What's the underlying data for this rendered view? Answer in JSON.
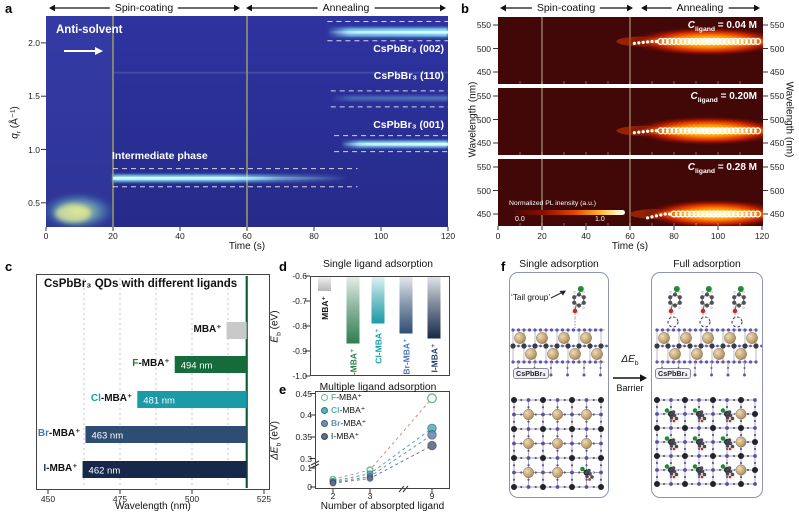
{
  "figure": {
    "panel_labels": {
      "a": "a",
      "b": "b",
      "c": "c",
      "d": "d",
      "e": "e",
      "f": "f"
    }
  },
  "panel_a": {
    "stage_arrows": {
      "spin": "Spin-coating",
      "anneal": "Annealing"
    },
    "anti_solvent": "Anti-solvent",
    "annotations": {
      "peak_002": "CsPbBr₃ (002)",
      "peak_110": "CsPbBr₃ (110)",
      "peak_001": "CsPbBr₃ (001)",
      "intermediate": "Intermediate phase"
    },
    "xlabel": "Time (s)",
    "xticks": [
      "0",
      "20",
      "40",
      "60",
      "80",
      "100",
      "120"
    ],
    "yticks": [
      "2.0",
      "1.5",
      "1.0",
      "0.5"
    ],
    "ylabel": {
      "pre": "q",
      "sub": "r",
      "post": " (Å⁻¹)"
    }
  },
  "panel_b": {
    "stage_arrows": {
      "spin": "Spin-coating",
      "anneal": "Annealing"
    },
    "ylabel_left": "Wavelength (nm)",
    "ylabel_right": "Wavelength (nm)",
    "xlabel": "Time (s)",
    "xticks": [
      "0",
      "20",
      "40",
      "60",
      "80",
      "100",
      "120"
    ],
    "yticks": [
      "550",
      "500",
      "450"
    ],
    "subpanels": [
      {
        "label": {
          "sym": "C",
          "sub": "ligand",
          "eq": " = 0.04 M"
        }
      },
      {
        "label": {
          "sym": "C",
          "sub": "ligand",
          "eq": " = 0.20M"
        }
      },
      {
        "label": {
          "sym": "C",
          "sub": "ligand",
          "eq": " = 0.28 M"
        }
      }
    ],
    "colorbar": {
      "label": "Normalized PL inensity (a.u.)",
      "min": "0.0",
      "max": "1.0"
    }
  },
  "panel_c": {
    "title": "CsPbBr₃ QDs with different ligands",
    "xlabel": "Wavelength (nm)",
    "xticks": [
      "450",
      "475",
      "500",
      "525"
    ]
  },
  "panel_d": {
    "title": "Single ligand adsorption",
    "ylabel": {
      "pre": "E",
      "sub": "b",
      "post": " (eV)"
    },
    "yticks": [
      "-0.6",
      "-0.7",
      "-0.8",
      "-0.9",
      "-1.0"
    ]
  },
  "panel_e": {
    "title": "Multiple ligand adsorption",
    "ylabel": {
      "pre": "ΔE",
      "sub": "b",
      "post": " (eV)"
    },
    "xlabel": "Number of absorpted ligand",
    "yticks": [
      "0.45",
      "0.4",
      "0.35",
      "0.3",
      "0.1",
      "0"
    ],
    "xticks": [
      "2",
      "3",
      "9"
    ]
  },
  "panel_f": {
    "left_title": "Single adsorption",
    "right_title": "Full adsorption",
    "tail_group": "‘Tail group’",
    "crystal_label_left": "CsPbBr₃",
    "crystal_label_right": "CsPbBr₃",
    "barrier": {
      "sym": "ΔE",
      "sub": "b",
      "word": "Barrier"
    }
  },
  "chart_data": [
    {
      "id": "panel-a",
      "type": "heatmap",
      "xlabel": "Time (s)",
      "ylabel": "qr (Å⁻¹)",
      "xlim": [
        0,
        120
      ],
      "ylim": [
        0.27,
        2.25
      ],
      "xticks": [
        0,
        20,
        40,
        60,
        80,
        100,
        120
      ],
      "yticks": [
        0.5,
        1.0,
        1.5,
        2.0
      ],
      "event_times_s": [
        20,
        60
      ],
      "features": [
        {
          "label": "precursor scattering",
          "q_range": [
            0.3,
            0.55
          ],
          "t_range": [
            0,
            20
          ],
          "intensity": "strong"
        },
        {
          "label": "Intermediate phase",
          "q_center": 0.73,
          "q_guides": [
            0.65,
            0.82
          ],
          "t_range": [
            20,
            90
          ],
          "intensity": "strong"
        },
        {
          "label": "CsPbBr₃ (001)",
          "q_center": 1.05,
          "q_guides": [
            0.98,
            1.13
          ],
          "t_range": [
            88,
            120
          ],
          "intensity": "strong"
        },
        {
          "label": "CsPbBr₃ (110)",
          "q_center": 1.48,
          "q_guides": [
            1.4,
            1.55
          ],
          "t_range": [
            85,
            120
          ],
          "intensity": "weak"
        },
        {
          "label": "CsPbBr₃ (002)",
          "q_center": 2.1,
          "q_guides": [
            2.02,
            2.2
          ],
          "t_range": [
            84,
            120
          ],
          "intensity": "strong"
        }
      ]
    },
    {
      "id": "panel-b",
      "type": "heatmap",
      "xlabel": "Time (s)",
      "ylabel": "Wavelength (nm)",
      "xlim": [
        0,
        120
      ],
      "ylim": [
        424,
        567
      ],
      "xticks": [
        0,
        20,
        40,
        60,
        80,
        100,
        120
      ],
      "yticks": [
        450,
        500,
        550
      ],
      "event_times_s": [
        20,
        60
      ],
      "subpanels": [
        {
          "c_ligand": "0.04 M",
          "pl_peak_nm": 515,
          "emission_onset_s": 62
        },
        {
          "c_ligand": "0.20M",
          "pl_peak_nm": 476,
          "emission_onset_s": 62
        },
        {
          "c_ligand": "0.28 M",
          "pl_peak_nm": 450,
          "emission_onset_s": 68
        }
      ],
      "colorbar": {
        "label": "Normalized PL inensity (a.u.)",
        "range": [
          0.0,
          1.0
        ]
      }
    },
    {
      "id": "panel-c",
      "type": "bar",
      "orientation": "horizontal",
      "title": "CsPbBr₃ QDs with different ligands",
      "xlabel": "Wavelength (nm)",
      "xlim": [
        446,
        527
      ],
      "xticks": [
        450,
        475,
        500,
        525
      ],
      "reference_line_nm": 519,
      "categories": [
        {
          "prefix": "",
          "rest": "MBA⁺"
        },
        {
          "prefix": "F",
          "rest": "-MBA⁺"
        },
        {
          "prefix": "Cl",
          "rest": "-MBA⁺"
        },
        {
          "prefix": "Br",
          "rest": "-MBA⁺"
        },
        {
          "prefix": "I",
          "rest": "-MBA⁺"
        }
      ],
      "bar_start_nm": [
        512,
        494,
        481,
        463,
        462
      ],
      "bar_end_nm": [
        519,
        519,
        519,
        519,
        519
      ],
      "value_labels": [
        "",
        "494 nm",
        "481 nm",
        "463 nm",
        "462 nm"
      ],
      "colors": [
        "#c9c9c9",
        "#156b39",
        "#1b9aa8",
        "#2e4d73",
        "#16294a"
      ],
      "label_colors": [
        "#111111",
        "#1e7a42",
        "#15a0ae",
        "#4a7ab5",
        "#1c3a66"
      ]
    },
    {
      "id": "panel-d",
      "type": "bar",
      "title": "Single ligand adsorption",
      "ylabel": "Eb (eV)",
      "ylim": [
        -1.0,
        -0.6
      ],
      "yticks": [
        -0.6,
        -0.7,
        -0.8,
        -0.9,
        -1.0
      ],
      "categories": [
        {
          "prefix": "",
          "rest": "MBA⁺"
        },
        {
          "prefix": "F",
          "rest": "-MBA⁺"
        },
        {
          "prefix": "Cl",
          "rest": "-MBA⁺"
        },
        {
          "prefix": "Br",
          "rest": "-MBA⁺"
        },
        {
          "prefix": "I",
          "rest": "-MBA⁺"
        }
      ],
      "values": [
        -0.66,
        -0.87,
        -0.79,
        -0.83,
        -0.85
      ],
      "colors": [
        "#b8b8b8",
        "#2e7d4f",
        "#1b9aa8",
        "#2e4d73",
        "#16294a"
      ],
      "label_colors": [
        "#111111",
        "#2e7d4f",
        "#15a0ae",
        "#4a7ab5",
        "#24436e"
      ]
    },
    {
      "id": "panel-e",
      "type": "scatter",
      "title": "Multiple ligand adsorption",
      "ylabel": "ΔEb (eV)",
      "xlabel": "Number of absorpted ligand",
      "x": [
        2,
        3,
        9
      ],
      "ylim": [
        0,
        0.45
      ],
      "y_axis_break": [
        0.1,
        0.3
      ],
      "x_axis_break": [
        3,
        9
      ],
      "series": [
        {
          "prefix": "F",
          "rest": "-MBA⁺",
          "open_marker": true,
          "marker_color": "#6cbf92",
          "line_color": "#d98880",
          "values": [
            0.04,
            0.09,
            0.44
          ]
        },
        {
          "prefix": "Cl",
          "rest": "-MBA⁺",
          "open_marker": false,
          "marker_color": "#54b4bf",
          "line_color": "#48a9b0",
          "values": [
            0.03,
            0.07,
            0.37
          ]
        },
        {
          "prefix": "Br",
          "rest": "-MBA⁺",
          "open_marker": false,
          "marker_color": "#6f8cb3",
          "line_color": "#7090b8",
          "values": [
            0.025,
            0.055,
            0.355
          ]
        },
        {
          "prefix": "I",
          "rest": "-MBA⁺",
          "open_marker": false,
          "marker_color": "#5d6c84",
          "line_color": "#707a8a",
          "values": [
            0.02,
            0.045,
            0.33
          ]
        }
      ]
    }
  ]
}
